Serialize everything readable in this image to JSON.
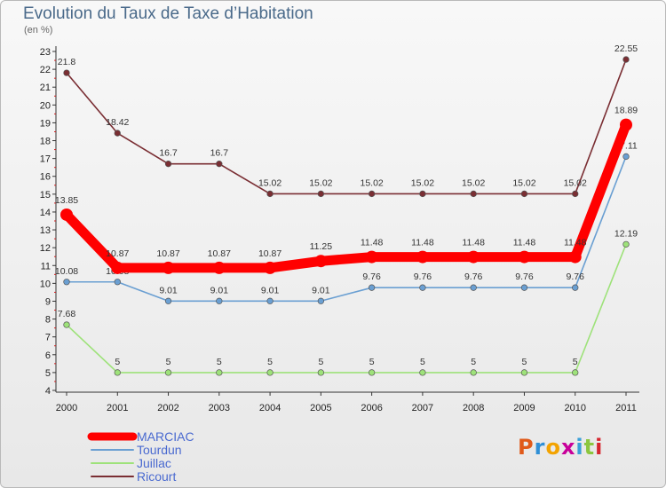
{
  "title": "Evolution du Taux de Taxe d’Habitation",
  "subtitle": "(en %)",
  "logo": {
    "text": "Proxiti",
    "colors": [
      "#e05a1a",
      "#2f8fd6",
      "#f3a300",
      "#c8009a",
      "#3aa0d8",
      "#8cc63e",
      "#d6262f"
    ]
  },
  "chart_data": {
    "type": "line",
    "x": [
      "2000",
      "2001",
      "2002",
      "2003",
      "2004",
      "2005",
      "2006",
      "2007",
      "2008",
      "2009",
      "2010",
      "2011"
    ],
    "ylim": [
      4,
      23
    ],
    "yticks": [
      4,
      5,
      6,
      7,
      8,
      9,
      10,
      11,
      12,
      13,
      14,
      15,
      16,
      17,
      18,
      19,
      20,
      21,
      22,
      23
    ],
    "grid": false,
    "legend_position": "bottom-left",
    "series": [
      {
        "name": "MARCIAC",
        "color": "#ff0000",
        "values": [
          13.85,
          10.87,
          10.87,
          10.87,
          10.87,
          11.25,
          11.48,
          11.48,
          11.48,
          11.48,
          11.48,
          18.89
        ],
        "labels": [
          "13.85",
          "10.87",
          "10.87",
          "10.87",
          "10.87",
          "11.25",
          "11.48",
          "11.48",
          "11.48",
          "11.48",
          "11.48",
          "18.89"
        ]
      },
      {
        "name": "Tourdun",
        "color": "#6a9fd2",
        "values": [
          10.08,
          10.08,
          9.01,
          9.01,
          9.01,
          9.01,
          9.76,
          9.76,
          9.76,
          9.76,
          9.76,
          17.11
        ],
        "labels": [
          "10.08",
          "10.08",
          "9.01",
          "9.01",
          "9.01",
          "9.01",
          "9.76",
          "9.76",
          "9.76",
          "9.76",
          "9.76",
          "17.11"
        ]
      },
      {
        "name": "Juillac",
        "color": "#9ee27a",
        "values": [
          7.68,
          5,
          5,
          5,
          5,
          5,
          5,
          5,
          5,
          5,
          5,
          12.19
        ],
        "labels": [
          "7.68",
          "5",
          "5",
          "5",
          "5",
          "5",
          "5",
          "5",
          "5",
          "5",
          "5",
          "12.19"
        ]
      },
      {
        "name": "Ricourt",
        "color": "#7a2e33",
        "values": [
          21.8,
          18.42,
          16.7,
          16.7,
          15.02,
          15.02,
          15.02,
          15.02,
          15.02,
          15.02,
          15.02,
          22.55
        ],
        "labels": [
          "21.8",
          "18.42",
          "16.7",
          "16.7",
          "15.02",
          "15.02",
          "15.02",
          "15.02",
          "15.02",
          "15.02",
          "15.02",
          "22.55"
        ]
      }
    ]
  }
}
